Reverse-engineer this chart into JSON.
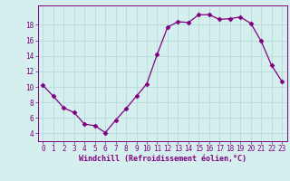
{
  "x": [
    0,
    1,
    2,
    3,
    4,
    5,
    6,
    7,
    8,
    9,
    10,
    11,
    12,
    13,
    14,
    15,
    16,
    17,
    18,
    19,
    20,
    21,
    22,
    23
  ],
  "y": [
    10.2,
    8.8,
    7.3,
    6.7,
    5.2,
    5.0,
    4.1,
    5.7,
    7.2,
    8.8,
    10.4,
    14.2,
    17.7,
    18.4,
    18.3,
    19.3,
    19.3,
    18.7,
    18.8,
    19.0,
    18.2,
    15.9,
    12.8,
    10.7
  ],
  "line_color": "#800080",
  "marker": "D",
  "marker_size": 2.5,
  "bg_color": "#d5efef",
  "grid_color": "#b8dede",
  "axes_color": "#800080",
  "xlabel": "Windchill (Refroidissement éolien,°C)",
  "ylabel": "",
  "xlim": [
    -0.5,
    23.5
  ],
  "ylim": [
    3.0,
    20.5
  ],
  "yticks": [
    4,
    6,
    8,
    10,
    12,
    14,
    16,
    18
  ],
  "xticks": [
    0,
    1,
    2,
    3,
    4,
    5,
    6,
    7,
    8,
    9,
    10,
    11,
    12,
    13,
    14,
    15,
    16,
    17,
    18,
    19,
    20,
    21,
    22,
    23
  ],
  "tick_label_fontsize": 5.5,
  "xlabel_fontsize": 6.0
}
